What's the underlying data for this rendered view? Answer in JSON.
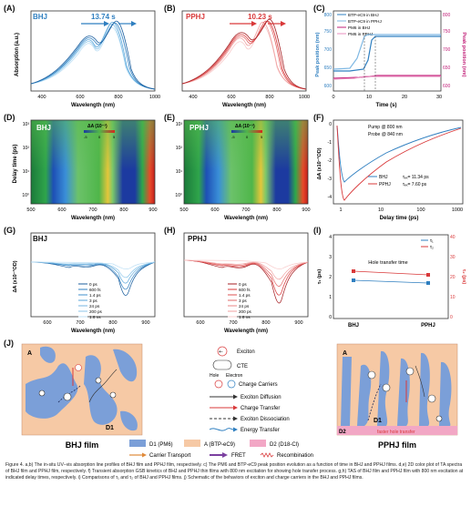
{
  "panels": {
    "A": {
      "label": "(A)",
      "tag": "BHJ",
      "time": "13.74 s",
      "ylabel": "Absorption (a.u.)",
      "xlabel": "Wavelength (nm)",
      "xticks": [
        "400",
        "600",
        "800",
        "1000"
      ]
    },
    "B": {
      "label": "(B)",
      "tag": "PPHJ",
      "time": "10.23 s",
      "xlabel": "Wavelength (nm)",
      "xticks": [
        "400",
        "600",
        "800",
        "1000"
      ]
    },
    "C": {
      "label": "(C)",
      "legend": [
        "BTP-eC9 in BHJ",
        "BTP-eC9 in PPHJ",
        "PM6 in BHJ",
        "PM6 in PPHJ"
      ],
      "ylabel_left": "Peak position (nm)",
      "ylabel_right": "Peak position (nm)",
      "xlabel": "Time (s)",
      "xticks": [
        "0",
        "10",
        "20",
        "30"
      ],
      "yticks_left": [
        "600",
        "650",
        "700",
        "750",
        "800"
      ],
      "yticks_right": [
        "600",
        "650",
        "700",
        "750",
        "800"
      ]
    },
    "D": {
      "label": "(D)",
      "tag": "BHJ",
      "delta": "ΔA (10⁻³)",
      "scale": [
        "-5",
        "0",
        "5"
      ],
      "ylabel": "Delay time (ps)",
      "xlabel": "Wavelength (nm)",
      "xticks": [
        "500",
        "600",
        "700",
        "800",
        "900"
      ],
      "yticks": [
        "10³",
        "10²",
        "10¹",
        "10⁰"
      ]
    },
    "E": {
      "label": "(E)",
      "tag": "PPHJ",
      "delta": "ΔA (10⁻³)",
      "scale": [
        "-5",
        "0",
        "5"
      ],
      "xlabel": "Wavelength (nm)",
      "xticks": [
        "500",
        "600",
        "700",
        "800",
        "900"
      ],
      "yticks": [
        "10³",
        "10²",
        "10¹",
        "10⁰"
      ]
    },
    "F": {
      "label": "(F)",
      "pump": "Pump @ 800 nm",
      "probe": "Probe @ 840 nm",
      "legend": [
        "BHJ",
        "PPHJ"
      ],
      "tau_bhj": "τₑₓ= 11.34 ps",
      "tau_pphj": "τₑₓ= 7.60 ps",
      "ylabel": "ΔA (x10⁻³OD)",
      "xlabel": "Delay time (ps)",
      "xticks": [
        "1",
        "10",
        "100",
        "1000"
      ],
      "yticks": [
        "0",
        "-1",
        "-2",
        "-3",
        "-4"
      ]
    },
    "G": {
      "label": "(G)",
      "tag": "BHJ",
      "legend": [
        "0 ps",
        "600 fs",
        "1.4 ps",
        "3 ps",
        "24 ps",
        "200 ps",
        "1.6 ns"
      ],
      "ylabel": "ΔA (x10⁻³OD)",
      "xlabel": "Wavelength (nm)",
      "xticks": [
        "600",
        "700",
        "800",
        "900"
      ]
    },
    "H": {
      "label": "(H)",
      "tag": "PPHJ",
      "legend": [
        "0 ps",
        "600 fs",
        "1.4 ps",
        "3 ps",
        "24 ps",
        "200 ps",
        "1.6 ns"
      ],
      "xlabel": "Wavelength (nm)",
      "xticks": [
        "600",
        "700",
        "800",
        "900"
      ]
    },
    "I": {
      "label": "(I)",
      "title": "Hole transfer time",
      "legend": [
        "τ₁",
        "τ₂"
      ],
      "ylabel_left": "τ₁ (ps)",
      "ylabel_right": "τ₂ (ps)",
      "categories": [
        "BHJ",
        "PPHJ"
      ],
      "yticks_left": [
        "0",
        "1",
        "2",
        "3",
        "4"
      ],
      "yticks_right": [
        "0",
        "10",
        "20",
        "30",
        "40"
      ]
    },
    "J": {
      "label": "(J)",
      "left_title": "BHJ film",
      "right_title": "PPHJ film",
      "region_a": "A",
      "region_d1": "D1",
      "region_d2": "D2",
      "faster_transfer": "faster hole transfer",
      "legend_items": [
        "Exciton",
        "CTE",
        "Hole",
        "Electron",
        "Charge Carriers",
        "Exciton  Diffusion",
        "Charge  Transfer",
        "Exciton  Dissociation",
        "Energy  Transfer"
      ],
      "bottom_legend": [
        "D1 (PM6)",
        "A (BTP-eC9)",
        "D2 (D18-Cl)",
        "Carrier Transport",
        "FRET",
        "Recombination"
      ]
    }
  },
  "colors": {
    "bhj": "#2f7fc0",
    "pphj": "#d9393a",
    "pm6": "#c2227a",
    "bhj_light": "#7fb8e3",
    "pphj_light": "#f0a0a0",
    "donor": "#7b9fd8",
    "acceptor": "#f6c9a5",
    "d2": "#f2a7c5"
  },
  "caption": "Figure 4. a,b) The in-situ UV–vis absorption line profiles of BHJ film and PPHJ film, respectively. c) The PM6 and BTP-eC9 peak position evolution as a function of time in BHJ and PPHJ films. d,e) 2D color plot of TA spectra of BHJ film and PPHJ film, respectively. f) Transient absorption GSB kinetics of BHJ and PPHJ thin films with 800 nm excitation for showing hole transfer process. g,h) TAS of BHJ film and PPHJ film with 800 nm excitation at indicated delay times, respectively. i) Comparisons of τ₁ and τ₂ of BHJ and PPHJ films. j) Schematic of the behaviors of exciton and charge carriers in the BHJ and PPHJ films.",
  "chart_data": [
    {
      "type": "line",
      "panel": "A",
      "title": "",
      "xlabel": "Wavelength (nm)",
      "ylabel": "Absorption (a.u.)",
      "xlim": [
        400,
        1000
      ],
      "series": [
        {
          "name": "",
          "x": [
            400,
            500,
            600,
            650,
            700,
            750,
            800,
            850,
            900,
            1000
          ],
          "y": [
            0.1,
            0.25,
            0.55,
            0.85,
            0.7,
            0.95,
            0.6,
            0.2,
            0.08,
            0.02
          ]
        }
      ]
    },
    {
      "type": "line",
      "panel": "B",
      "title": "",
      "xlabel": "Wavelength (nm)",
      "xlim": [
        400,
        1000
      ],
      "series": [
        {
          "name": "",
          "x": [
            400,
            500,
            600,
            650,
            700,
            750,
            800,
            850,
            900,
            1000
          ],
          "y": [
            0.1,
            0.25,
            0.55,
            0.9,
            0.75,
            0.95,
            0.55,
            0.2,
            0.08,
            0.02
          ]
        }
      ]
    },
    {
      "type": "line",
      "panel": "C",
      "xlabel": "Time (s)",
      "ylabel": "Peak position (nm)",
      "xlim": [
        0,
        30
      ],
      "series": [
        {
          "name": "BTP-eC9 in BHJ",
          "x": [
            0,
            5,
            10,
            12,
            13.7,
            20,
            30
          ],
          "y": [
            735,
            735,
            740,
            760,
            790,
            792,
            792
          ]
        },
        {
          "name": "BTP-eC9 in PPHJ",
          "x": [
            0,
            5,
            8,
            10.2,
            20,
            30
          ],
          "y": [
            738,
            740,
            770,
            795,
            795,
            795
          ]
        },
        {
          "name": "PM6 in BHJ",
          "x": [
            0,
            10,
            13.7,
            30
          ],
          "y": [
            620,
            625,
            628,
            628
          ]
        },
        {
          "name": "PM6 in PPHJ",
          "x": [
            0,
            8,
            10.2,
            30
          ],
          "y": [
            622,
            626,
            628,
            628
          ]
        }
      ]
    },
    {
      "type": "line",
      "panel": "F",
      "xlabel": "Delay time (ps)",
      "ylabel": "ΔA (x10⁻³OD)",
      "series": [
        {
          "name": "BHJ",
          "x": [
            1,
            1.5,
            3,
            10,
            100,
            1000
          ],
          "y": [
            -1.5,
            -2.2,
            -1.8,
            -1.2,
            -0.6,
            -0.2
          ]
        },
        {
          "name": "PPHJ",
          "x": [
            1,
            1.5,
            3,
            10,
            100,
            1000
          ],
          "y": [
            -2.5,
            -3.5,
            -2.6,
            -1.6,
            -0.7,
            -0.2
          ]
        }
      ]
    },
    {
      "type": "line",
      "panel": "I",
      "title": "Hole transfer time",
      "categories": [
        "BHJ",
        "PPHJ"
      ],
      "series": [
        {
          "name": "τ₁",
          "values": [
            2.0,
            1.5
          ]
        },
        {
          "name": "τ₂",
          "values": [
            24,
            21
          ]
        }
      ]
    }
  ]
}
